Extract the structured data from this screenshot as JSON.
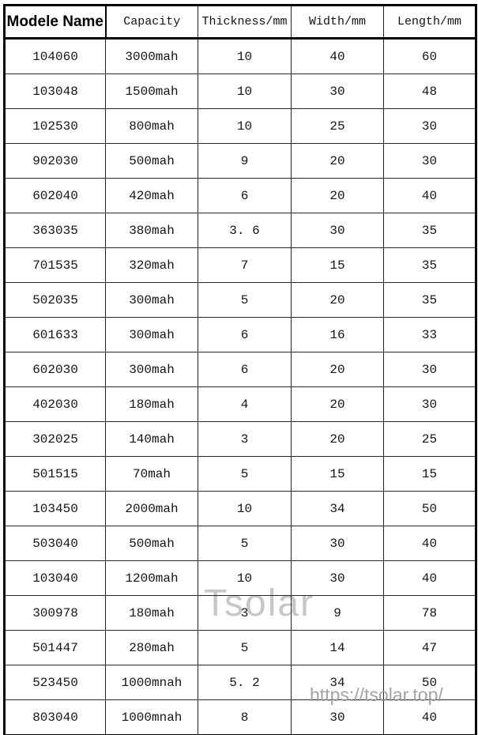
{
  "table": {
    "headers": [
      "Modele Name",
      "Capacity",
      "Thickness/mm",
      "Width/mm",
      "Length/mm"
    ],
    "rows": [
      [
        "104060",
        "3000mah",
        "10",
        "40",
        "60"
      ],
      [
        "103048",
        "1500mah",
        "10",
        "30",
        "48"
      ],
      [
        "102530",
        "800mah",
        "10",
        "25",
        "30"
      ],
      [
        "902030",
        "500mah",
        "9",
        "20",
        "30"
      ],
      [
        "602040",
        "420mah",
        "6",
        "20",
        "40"
      ],
      [
        "363035",
        "380mah",
        "3. 6",
        "30",
        "35"
      ],
      [
        "701535",
        "320mah",
        "7",
        "15",
        "35"
      ],
      [
        "502035",
        "300mah",
        "5",
        "20",
        "35"
      ],
      [
        "601633",
        "300mah",
        "6",
        "16",
        "33"
      ],
      [
        "602030",
        "300mah",
        "6",
        "20",
        "30"
      ],
      [
        "402030",
        "180mah",
        "4",
        "20",
        "30"
      ],
      [
        "302025",
        "140mah",
        "3",
        "20",
        "25"
      ],
      [
        "501515",
        "70mah",
        "5",
        "15",
        "15"
      ],
      [
        "103450",
        "2000mah",
        "10",
        "34",
        "50"
      ],
      [
        "503040",
        "500mah",
        "5",
        "30",
        "40"
      ],
      [
        "103040",
        "1200mah",
        "10",
        "30",
        "40"
      ],
      [
        "300978",
        "180mah",
        "3",
        "9",
        "78"
      ],
      [
        "501447",
        "280mah",
        "5",
        "14",
        "47"
      ],
      [
        "523450",
        "1000mnah",
        "5. 2",
        "34",
        "50"
      ],
      [
        "803040",
        "1000mnah",
        "8",
        "30",
        "40"
      ]
    ]
  },
  "watermark": {
    "brand": "Tsolar",
    "url": "https://tsolar.top/"
  },
  "colors": {
    "border": "#000000",
    "text": "#141414",
    "watermark_brand": "#c7c7c7",
    "watermark_url": "#9a9a9a"
  }
}
